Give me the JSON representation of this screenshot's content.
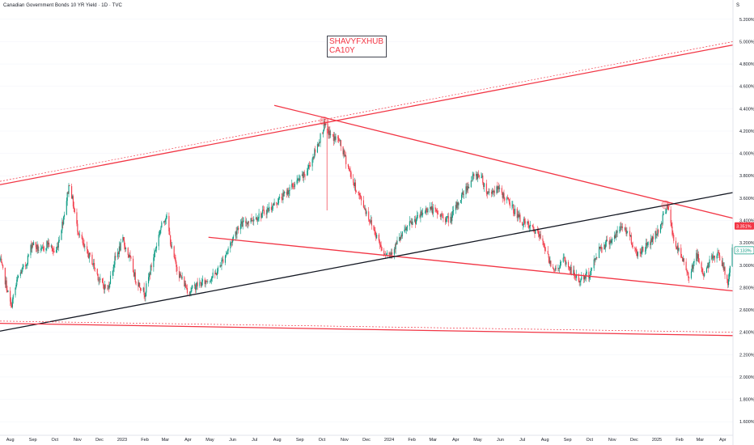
{
  "header": {
    "title": "Canadian Government Bonds 10 YR Yield · 1D · TVC",
    "corner_label": "S"
  },
  "annotation": {
    "line1": "SHAVYFXHUB",
    "line2": "CA10Y"
  },
  "colors": {
    "up": "#089981",
    "down": "#f23645",
    "trend_red": "#f23645",
    "trend_black": "#131722",
    "axis_text": "#131722",
    "grid": "#f0f3fa"
  },
  "chart_data": {
    "type": "candlestick",
    "symbol": "CA10Y",
    "x_range": [
      "2022-07-18",
      "2025-04-15"
    ],
    "y_range": [
      1.5,
      5.3
    ],
    "y_unit": "%",
    "y_ticks": [
      5.2,
      5.0,
      4.8,
      4.6,
      4.4,
      4.2,
      4.0,
      3.8,
      3.6,
      3.4,
      3.2,
      3.0,
      2.8,
      2.6,
      2.4,
      2.2,
      2.0,
      1.8,
      1.6
    ],
    "y_tick_labels": [
      "5.200%",
      "5.000%",
      "4.800%",
      "4.600%",
      "4.400%",
      "4.200%",
      "4.000%",
      "3.800%",
      "3.600%",
      "3.400%",
      "3.200%",
      "3.000%",
      "2.800%",
      "2.600%",
      "2.400%",
      "2.200%",
      "2.000%",
      "1.800%",
      "1.600%"
    ],
    "x_ticks": [
      {
        "label": "Aug",
        "date": "2022-08-01"
      },
      {
        "label": "Sep",
        "date": "2022-09-01"
      },
      {
        "label": "Oct",
        "date": "2022-10-01"
      },
      {
        "label": "Nov",
        "date": "2022-11-01"
      },
      {
        "label": "Dec",
        "date": "2022-12-01"
      },
      {
        "label": "2023",
        "date": "2023-01-01"
      },
      {
        "label": "Feb",
        "date": "2023-02-01"
      },
      {
        "label": "Mar",
        "date": "2023-03-01"
      },
      {
        "label": "Apr",
        "date": "2023-04-01"
      },
      {
        "label": "May",
        "date": "2023-05-01"
      },
      {
        "label": "Jun",
        "date": "2023-06-01"
      },
      {
        "label": "Jul",
        "date": "2023-07-01"
      },
      {
        "label": "Aug",
        "date": "2023-08-01"
      },
      {
        "label": "Sep",
        "date": "2023-09-01"
      },
      {
        "label": "Oct",
        "date": "2023-10-01"
      },
      {
        "label": "Nov",
        "date": "2023-11-01"
      },
      {
        "label": "Dec",
        "date": "2023-12-01"
      },
      {
        "label": "2024",
        "date": "2024-01-01"
      },
      {
        "label": "Feb",
        "date": "2024-02-01"
      },
      {
        "label": "Mar",
        "date": "2024-03-01"
      },
      {
        "label": "Apr",
        "date": "2024-04-01"
      },
      {
        "label": "May",
        "date": "2024-05-01"
      },
      {
        "label": "Jun",
        "date": "2024-06-01"
      },
      {
        "label": "Jul",
        "date": "2024-07-01"
      },
      {
        "label": "Aug",
        "date": "2024-08-01"
      },
      {
        "label": "Sep",
        "date": "2024-09-01"
      },
      {
        "label": "Oct",
        "date": "2024-10-01"
      },
      {
        "label": "Nov",
        "date": "2024-11-01"
      },
      {
        "label": "Dec",
        "date": "2024-12-01"
      },
      {
        "label": "2025",
        "date": "2025-01-01"
      },
      {
        "label": "Feb",
        "date": "2025-02-01"
      },
      {
        "label": "Mar",
        "date": "2025-03-01"
      },
      {
        "label": "Apr",
        "date": "2025-04-01"
      }
    ],
    "price_path": [
      [
        "2022-07-18",
        3.05
      ],
      [
        "2022-07-28",
        2.78
      ],
      [
        "2022-08-02",
        2.63
      ],
      [
        "2022-08-12",
        2.9
      ],
      [
        "2022-08-22",
        3.0
      ],
      [
        "2022-08-31",
        3.2
      ],
      [
        "2022-09-12",
        3.12
      ],
      [
        "2022-09-21",
        3.2
      ],
      [
        "2022-10-02",
        3.1
      ],
      [
        "2022-10-12",
        3.4
      ],
      [
        "2022-10-21",
        3.74
      ],
      [
        "2022-10-31",
        3.35
      ],
      [
        "2022-11-10",
        3.15
      ],
      [
        "2022-11-20",
        3.05
      ],
      [
        "2022-12-02",
        2.85
      ],
      [
        "2022-12-12",
        2.78
      ],
      [
        "2022-12-22",
        3.05
      ],
      [
        "2023-01-02",
        3.22
      ],
      [
        "2023-01-12",
        3.05
      ],
      [
        "2023-01-19",
        2.88
      ],
      [
        "2023-02-01",
        2.75
      ],
      [
        "2023-02-12",
        3.05
      ],
      [
        "2023-02-22",
        3.32
      ],
      [
        "2023-03-02",
        3.45
      ],
      [
        "2023-03-11",
        3.1
      ],
      [
        "2023-03-20",
        2.92
      ],
      [
        "2023-04-02",
        2.76
      ],
      [
        "2023-04-12",
        2.82
      ],
      [
        "2023-04-24",
        2.85
      ],
      [
        "2023-05-09",
        2.92
      ],
      [
        "2023-05-24",
        3.12
      ],
      [
        "2023-06-09",
        3.35
      ],
      [
        "2023-06-24",
        3.4
      ],
      [
        "2023-07-09",
        3.45
      ],
      [
        "2023-07-24",
        3.52
      ],
      [
        "2023-08-09",
        3.62
      ],
      [
        "2023-08-24",
        3.72
      ],
      [
        "2023-09-09",
        3.82
      ],
      [
        "2023-09-24",
        4.05
      ],
      [
        "2023-10-04",
        4.25
      ],
      [
        "2023-10-14",
        4.15
      ],
      [
        "2023-10-24",
        4.12
      ],
      [
        "2023-11-04",
        3.92
      ],
      [
        "2023-11-14",
        3.72
      ],
      [
        "2023-11-24",
        3.58
      ],
      [
        "2023-12-09",
        3.35
      ],
      [
        "2023-12-24",
        3.12
      ],
      [
        "2024-01-02",
        3.1
      ],
      [
        "2024-01-12",
        3.2
      ],
      [
        "2024-01-27",
        3.35
      ],
      [
        "2024-02-09",
        3.42
      ],
      [
        "2024-02-24",
        3.52
      ],
      [
        "2024-03-09",
        3.45
      ],
      [
        "2024-03-24",
        3.4
      ],
      [
        "2024-04-09",
        3.62
      ],
      [
        "2024-04-24",
        3.78
      ],
      [
        "2024-05-04",
        3.82
      ],
      [
        "2024-05-14",
        3.65
      ],
      [
        "2024-05-29",
        3.68
      ],
      [
        "2024-06-14",
        3.55
      ],
      [
        "2024-06-29",
        3.4
      ],
      [
        "2024-07-09",
        3.35
      ],
      [
        "2024-07-19",
        3.3
      ],
      [
        "2024-07-29",
        3.22
      ],
      [
        "2024-08-06",
        3.05
      ],
      [
        "2024-08-16",
        2.95
      ],
      [
        "2024-08-26",
        3.05
      ],
      [
        "2024-09-06",
        2.95
      ],
      [
        "2024-09-16",
        2.86
      ],
      [
        "2024-10-01",
        2.92
      ],
      [
        "2024-10-14",
        3.15
      ],
      [
        "2024-10-24",
        3.2
      ],
      [
        "2024-11-04",
        3.25
      ],
      [
        "2024-11-14",
        3.35
      ],
      [
        "2024-11-24",
        3.28
      ],
      [
        "2024-12-04",
        3.1
      ],
      [
        "2024-12-14",
        3.15
      ],
      [
        "2024-12-24",
        3.22
      ],
      [
        "2025-01-06",
        3.35
      ],
      [
        "2025-01-15",
        3.55
      ],
      [
        "2025-01-24",
        3.22
      ],
      [
        "2025-02-05",
        3.05
      ],
      [
        "2025-02-14",
        2.9
      ],
      [
        "2025-02-24",
        3.1
      ],
      [
        "2025-03-06",
        2.92
      ],
      [
        "2025-03-16",
        3.05
      ],
      [
        "2025-03-26",
        3.12
      ],
      [
        "2025-04-03",
        2.95
      ],
      [
        "2025-04-08",
        2.85
      ],
      [
        "2025-04-14",
        3.13
      ]
    ],
    "price_labels": [
      {
        "text": "3.351%",
        "value": 3.351,
        "style": "filled",
        "color": "#f23645"
      },
      {
        "text": "3.133%",
        "value": 3.133,
        "style": "outline",
        "color": "#089981"
      }
    ],
    "trendlines": [
      {
        "name": "upper-channel",
        "color": "#f23645",
        "from": [
          "2022-07-18",
          3.72
        ],
        "to": [
          "2025-04-15",
          4.97
        ]
      },
      {
        "name": "upper-channel-dashed",
        "color": "#f23645",
        "dashed": true,
        "from": [
          "2022-07-18",
          3.75
        ],
        "to": [
          "2025-04-15",
          5.0
        ]
      },
      {
        "name": "descending-top",
        "color": "#f23645",
        "from": [
          "2023-07-28",
          4.43
        ],
        "to": [
          "2025-04-15",
          3.42
        ]
      },
      {
        "name": "descending-bottom",
        "color": "#f23645",
        "from": [
          "2023-04-29",
          3.25
        ],
        "to": [
          "2025-04-15",
          2.77
        ]
      },
      {
        "name": "support-black",
        "color": "#131722",
        "from": [
          "2022-07-18",
          2.41
        ],
        "to": [
          "2025-04-15",
          3.65
        ]
      },
      {
        "name": "lower-horizontal",
        "color": "#f23645",
        "from": [
          "2022-07-18",
          2.48
        ],
        "to": [
          "2025-04-15",
          2.37
        ]
      },
      {
        "name": "lower-horizontal-dashed",
        "color": "#f23645",
        "dashed": true,
        "from": [
          "2022-07-18",
          2.5
        ],
        "to": [
          "2025-04-15",
          2.4
        ]
      }
    ],
    "markers": [
      {
        "date": "2023-10-04",
        "value": 4.29
      },
      {
        "date": "2025-01-13",
        "value": 3.54
      }
    ]
  }
}
